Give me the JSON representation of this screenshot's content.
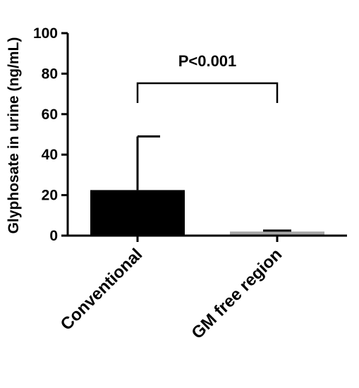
{
  "chart_data": {
    "type": "bar",
    "title": "",
    "xlabel": "",
    "ylabel": "Glyphosate in urine (ng/mL)",
    "ylim": [
      0,
      100
    ],
    "yticks": [
      "0",
      "20",
      "40",
      "60",
      "80",
      "100"
    ],
    "categories": [
      "Conventional",
      "GM free region"
    ],
    "values": [
      22.5,
      2.0
    ],
    "error_upper": [
      49.0,
      2.5
    ],
    "bar_colors": [
      "#000000",
      "#a6a6a6"
    ],
    "grid": false,
    "annotations": [
      {
        "text": "P<0.001",
        "between": [
          "Conventional",
          "GM free region"
        ]
      }
    ]
  }
}
